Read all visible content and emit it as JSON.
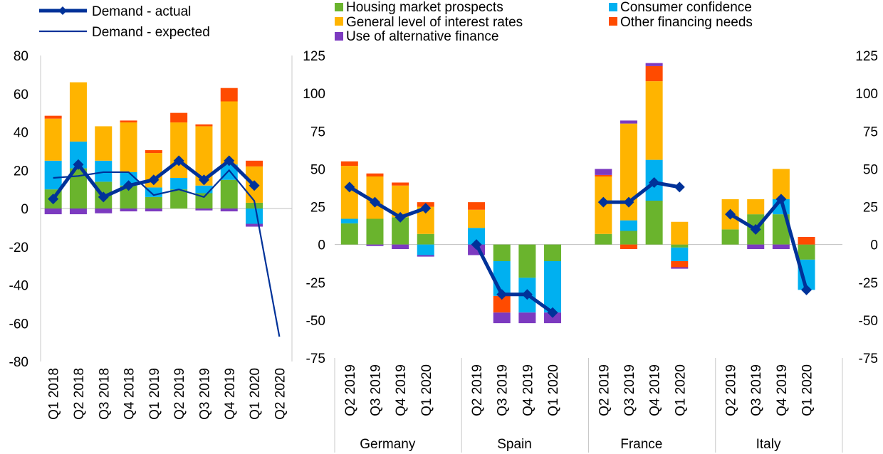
{
  "colors": {
    "housing": "#6AB42D",
    "consumer": "#00B0F0",
    "interest": "#FFB400",
    "other": "#FF4B00",
    "alternative": "#7C3AC0",
    "line": "#003299",
    "zero_line": "#bfbfbf",
    "separator": "#c8c8c8"
  },
  "legend": {
    "actual": "Demand - actual",
    "expected": "Demand - expected",
    "housing": "Housing market prospects",
    "consumer": "Consumer confidence",
    "interest": "General level of interest rates",
    "other": "Other financing needs",
    "alternative": "Use of alternative finance"
  },
  "chart_data": [
    {
      "type": "bar",
      "stacked": true,
      "panel": "euro-area",
      "categories": [
        "Q1 2018",
        "Q2 2018",
        "Q3 2018",
        "Q4 2018",
        "Q1 2019",
        "Q2 2019",
        "Q3 2019",
        "Q4 2019",
        "Q1 2020",
        "Q2 2020"
      ],
      "ylim": [
        -80,
        80
      ],
      "yticks": [
        -80,
        -60,
        -40,
        -20,
        0,
        20,
        40,
        60,
        80
      ],
      "series": [
        {
          "name": "Housing market prospects",
          "key": "housing",
          "values": [
            10,
            21,
            14,
            12,
            6,
            10,
            8,
            15,
            3,
            null
          ]
        },
        {
          "name": "Consumer confidence",
          "key": "consumer",
          "values": [
            15,
            14,
            11,
            7,
            5,
            6,
            4,
            8,
            -8,
            null
          ]
        },
        {
          "name": "General level of interest rates",
          "key": "interest",
          "values": [
            22,
            31,
            18,
            26,
            18,
            29,
            31,
            33,
            19,
            null
          ]
        },
        {
          "name": "Other financing needs",
          "key": "other",
          "values": [
            1.5,
            0,
            0,
            1,
            1.5,
            5,
            1,
            7,
            3,
            null
          ]
        },
        {
          "name": "Use of alternative finance",
          "key": "alternative",
          "values": [
            -3,
            -3,
            -2.5,
            -1.5,
            -1.5,
            0,
            -1,
            -1.5,
            -1.5,
            null
          ]
        }
      ],
      "lines": [
        {
          "name": "Demand - actual",
          "key": "actual",
          "values": [
            5,
            23,
            6,
            12,
            15,
            25,
            15,
            25,
            12,
            null
          ]
        },
        {
          "name": "Demand - expected",
          "key": "expected",
          "values": [
            16,
            17,
            19,
            19,
            7,
            10,
            6,
            20,
            4,
            -67
          ]
        }
      ]
    },
    {
      "type": "bar",
      "stacked": true,
      "panel": "countries",
      "ylim": [
        -75,
        125
      ],
      "yticks": [
        -75,
        -50,
        -25,
        0,
        25,
        50,
        75,
        100,
        125
      ],
      "categories": [
        "Q2 2019",
        "Q3 2019",
        "Q4 2019",
        "Q1 2020"
      ],
      "groups": [
        {
          "name": "Germany",
          "series": {
            "housing": [
              14,
              17,
              18,
              7
            ],
            "consumer": [
              3,
              0,
              0,
              -7
            ],
            "interest": [
              35,
              28,
              21,
              18
            ],
            "other": [
              3,
              2,
              2,
              3
            ],
            "alternative": [
              0,
              -1,
              -3,
              -1
            ]
          },
          "actual": [
            38,
            28,
            18,
            24
          ]
        },
        {
          "name": "Spain",
          "series": {
            "housing": [
              0,
              -11,
              -22,
              -11
            ],
            "consumer": [
              11,
              -23,
              -23,
              -34
            ],
            "interest": [
              12,
              0,
              0,
              0
            ],
            "other": [
              5,
              -11,
              0,
              0
            ],
            "alternative": [
              -7,
              -7,
              -7,
              -7
            ]
          },
          "actual": [
            0,
            -33,
            -33,
            -45
          ]
        },
        {
          "name": "France",
          "series": {
            "housing": [
              7,
              9,
              29,
              -2
            ],
            "consumer": [
              0,
              7,
              27,
              -9
            ],
            "interest": [
              38,
              64,
              52,
              15
            ],
            "other": [
              1,
              -3,
              10,
              -4
            ],
            "alternative": [
              4,
              2,
              2,
              -1
            ]
          },
          "actual": [
            28,
            28,
            41,
            38
          ]
        },
        {
          "name": "Italy",
          "series": {
            "housing": [
              10,
              20,
              20,
              -10
            ],
            "consumer": [
              0,
              0,
              10,
              -20
            ],
            "interest": [
              20,
              10,
              20,
              0
            ],
            "other": [
              0,
              0,
              0,
              5
            ],
            "alternative": [
              0,
              -3,
              -3,
              0
            ]
          },
          "actual": [
            20,
            10,
            30,
            -30
          ]
        }
      ]
    }
  ]
}
